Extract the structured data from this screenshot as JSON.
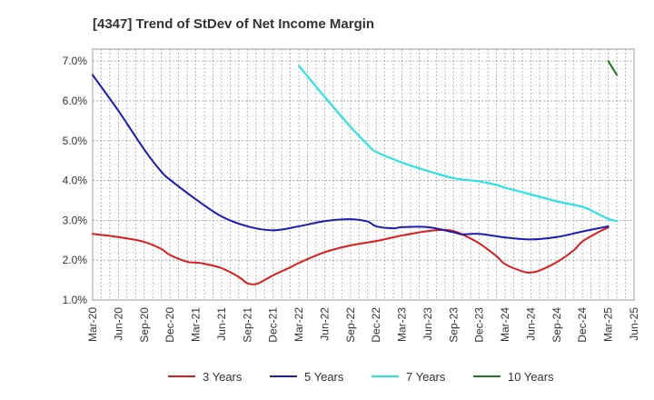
{
  "chart_data": {
    "type": "line",
    "title": "[4347]  Trend of StDev of Net Income Margin",
    "xlabel": "",
    "ylabel": "",
    "x_ticks": [
      "Mar-20",
      "Jun-20",
      "Sep-20",
      "Dec-20",
      "Mar-21",
      "Jun-21",
      "Sep-21",
      "Dec-21",
      "Mar-22",
      "Jun-22",
      "Sep-22",
      "Dec-22",
      "Mar-23",
      "Jun-23",
      "Sep-23",
      "Dec-23",
      "Mar-24",
      "Jun-24",
      "Sep-24",
      "Dec-24",
      "Mar-25",
      "Jun-25"
    ],
    "y_ticks": [
      "1.0%",
      "2.0%",
      "3.0%",
      "4.0%",
      "5.0%",
      "6.0%",
      "7.0%"
    ],
    "ylim": [
      1.0,
      7.3
    ],
    "grid": true,
    "legend_position": "bottom",
    "series": [
      {
        "name": "3 Years",
        "color": "#dd1c1c",
        "points": [
          [
            "Mar-20",
            2.66
          ],
          [
            "Jun-20",
            2.58
          ],
          [
            "Sep-20",
            2.46
          ],
          [
            "Nov-20",
            2.28
          ],
          [
            "Dec-20",
            2.13
          ],
          [
            "Feb-21",
            1.96
          ],
          [
            "Mar-21",
            1.94
          ],
          [
            "Apr-21",
            1.91
          ],
          [
            "Jun-21",
            1.8
          ],
          [
            "Aug-21",
            1.58
          ],
          [
            "Sep-21",
            1.42
          ],
          [
            "Oct-21",
            1.4
          ],
          [
            "Nov-21",
            1.5
          ],
          [
            "Dec-21",
            1.62
          ],
          [
            "Feb-22",
            1.82
          ],
          [
            "Mar-22",
            1.93
          ],
          [
            "Jun-22",
            2.2
          ],
          [
            "Sep-22",
            2.37
          ],
          [
            "Dec-22",
            2.48
          ],
          [
            "Mar-23",
            2.62
          ],
          [
            "Jun-23",
            2.73
          ],
          [
            "Aug-23",
            2.76
          ],
          [
            "Sep-23",
            2.73
          ],
          [
            "Oct-23",
            2.65
          ],
          [
            "Dec-23",
            2.42
          ],
          [
            "Feb-24",
            2.1
          ],
          [
            "Mar-24",
            1.9
          ],
          [
            "May-24",
            1.72
          ],
          [
            "Jun-24",
            1.69
          ],
          [
            "Jul-24",
            1.74
          ],
          [
            "Sep-24",
            1.95
          ],
          [
            "Nov-24",
            2.25
          ],
          [
            "Dec-24",
            2.47
          ],
          [
            "Feb-25",
            2.72
          ],
          [
            "Mar-25",
            2.82
          ]
        ]
      },
      {
        "name": "5 Years",
        "color": "#1c1cb4",
        "points": [
          [
            "Mar-20",
            6.65
          ],
          [
            "Jun-20",
            5.75
          ],
          [
            "Sep-20",
            4.78
          ],
          [
            "Nov-20",
            4.22
          ],
          [
            "Dec-20",
            4.02
          ],
          [
            "Mar-21",
            3.53
          ],
          [
            "Jun-21",
            3.1
          ],
          [
            "Sep-21",
            2.85
          ],
          [
            "Dec-21",
            2.75
          ],
          [
            "Mar-22",
            2.85
          ],
          [
            "Jun-22",
            2.98
          ],
          [
            "Sep-22",
            3.03
          ],
          [
            "Nov-22",
            2.97
          ],
          [
            "Dec-22",
            2.85
          ],
          [
            "Feb-23",
            2.8
          ],
          [
            "Mar-23",
            2.83
          ],
          [
            "Jun-23",
            2.83
          ],
          [
            "Sep-23",
            2.7
          ],
          [
            "Oct-23",
            2.65
          ],
          [
            "Dec-23",
            2.66
          ],
          [
            "Mar-24",
            2.57
          ],
          [
            "Jun-24",
            2.52
          ],
          [
            "Sep-24",
            2.58
          ],
          [
            "Dec-24",
            2.72
          ],
          [
            "Mar-25",
            2.85
          ]
        ]
      },
      {
        "name": "7 Years",
        "color": "#19e6e6",
        "points": [
          [
            "Mar-22",
            6.88
          ],
          [
            "Jun-22",
            6.1
          ],
          [
            "Sep-22",
            5.35
          ],
          [
            "Nov-22",
            4.9
          ],
          [
            "Dec-22",
            4.72
          ],
          [
            "Mar-23",
            4.45
          ],
          [
            "Jun-23",
            4.24
          ],
          [
            "Sep-23",
            4.06
          ],
          [
            "Dec-23",
            3.98
          ],
          [
            "Feb-24",
            3.89
          ],
          [
            "Mar-24",
            3.82
          ],
          [
            "Jun-24",
            3.65
          ],
          [
            "Sep-24",
            3.48
          ],
          [
            "Dec-24",
            3.34
          ],
          [
            "Jan-25",
            3.25
          ],
          [
            "Feb-25",
            3.14
          ],
          [
            "Mar-25",
            3.04
          ],
          [
            "Apr-25",
            2.98
          ]
        ]
      },
      {
        "name": "10 Years",
        "color": "#1e7a1e",
        "points": [
          [
            "Mar-25",
            7.0
          ],
          [
            "Apr-25",
            6.65
          ]
        ]
      }
    ]
  }
}
